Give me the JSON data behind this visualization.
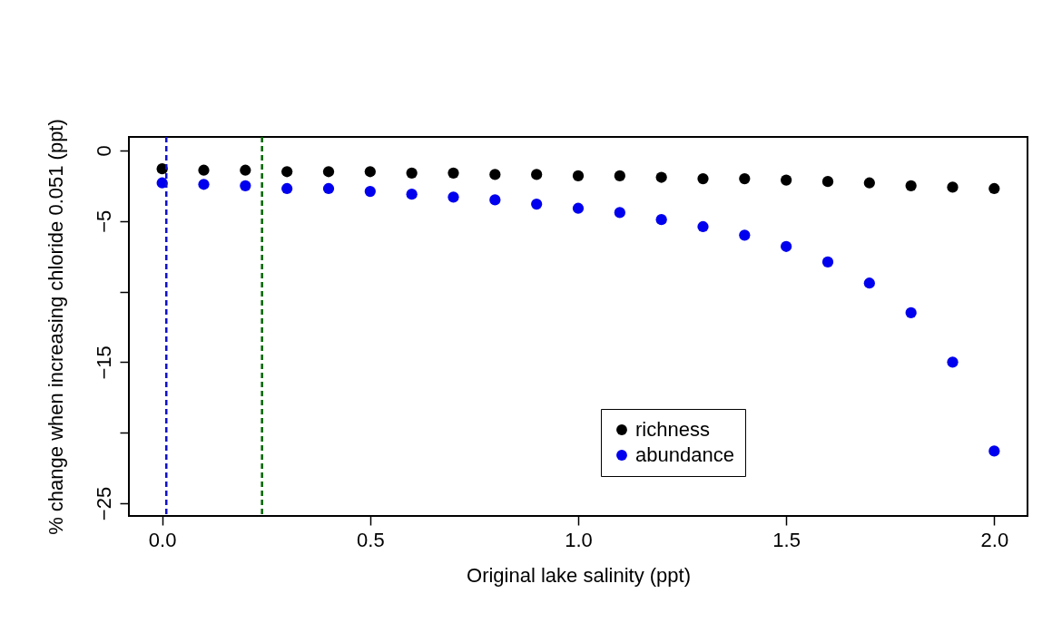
{
  "chart_data": {
    "type": "scatter",
    "xlabel": "Original lake salinity (ppt)",
    "ylabel": "% change when increasing chloride 0.051 (ppt)",
    "x": [
      0,
      0.1,
      0.2,
      0.3,
      0.4,
      0.5,
      0.6,
      0.7,
      0.8,
      0.9,
      1.0,
      1.1,
      1.2,
      1.3,
      1.4,
      1.5,
      1.6,
      1.7,
      1.8,
      1.9,
      2.0
    ],
    "series": [
      {
        "name": "richness",
        "color": "#000000",
        "values": [
          -1.3,
          -1.4,
          -1.4,
          -1.5,
          -1.5,
          -1.5,
          -1.6,
          -1.6,
          -1.7,
          -1.7,
          -1.8,
          -1.8,
          -1.9,
          -2.0,
          -2.0,
          -2.1,
          -2.2,
          -2.3,
          -2.5,
          -2.6,
          -2.7
        ]
      },
      {
        "name": "abundance",
        "color": "#0000ee",
        "values": [
          -2.3,
          -2.4,
          -2.5,
          -2.7,
          -2.7,
          -2.9,
          -3.1,
          -3.3,
          -3.5,
          -3.8,
          -4.1,
          -4.4,
          -4.9,
          -5.4,
          -6.0,
          -6.8,
          -7.9,
          -9.4,
          -11.5,
          -15.0,
          -21.3
        ]
      }
    ],
    "xlim": [
      -0.08,
      2.08
    ],
    "xticks": [
      {
        "value": 0,
        "label": "0.0"
      },
      0.5,
      {
        "value": 1,
        "label": "1.0"
      },
      1.5,
      {
        "value": 2,
        "label": "2.0"
      }
    ],
    "ylim": [
      -25.9,
      0.96
    ],
    "yticks": [
      {
        "value": -25,
        "label": "−25"
      },
      {
        "value": -20,
        "label": null
      },
      {
        "value": -15,
        "label": "−15"
      },
      {
        "value": -10,
        "label": null
      },
      {
        "value": -5,
        "label": "−5"
      },
      0
    ],
    "ref_lines": [
      {
        "axis": "x",
        "value": 0.01,
        "color": "#1010cc",
        "line_style": "dashed"
      },
      {
        "axis": "x",
        "value": 0.24,
        "color": "#006400",
        "line_style": "dashed"
      }
    ],
    "grid": false,
    "legend": "bottom",
    "marker": "circle"
  }
}
